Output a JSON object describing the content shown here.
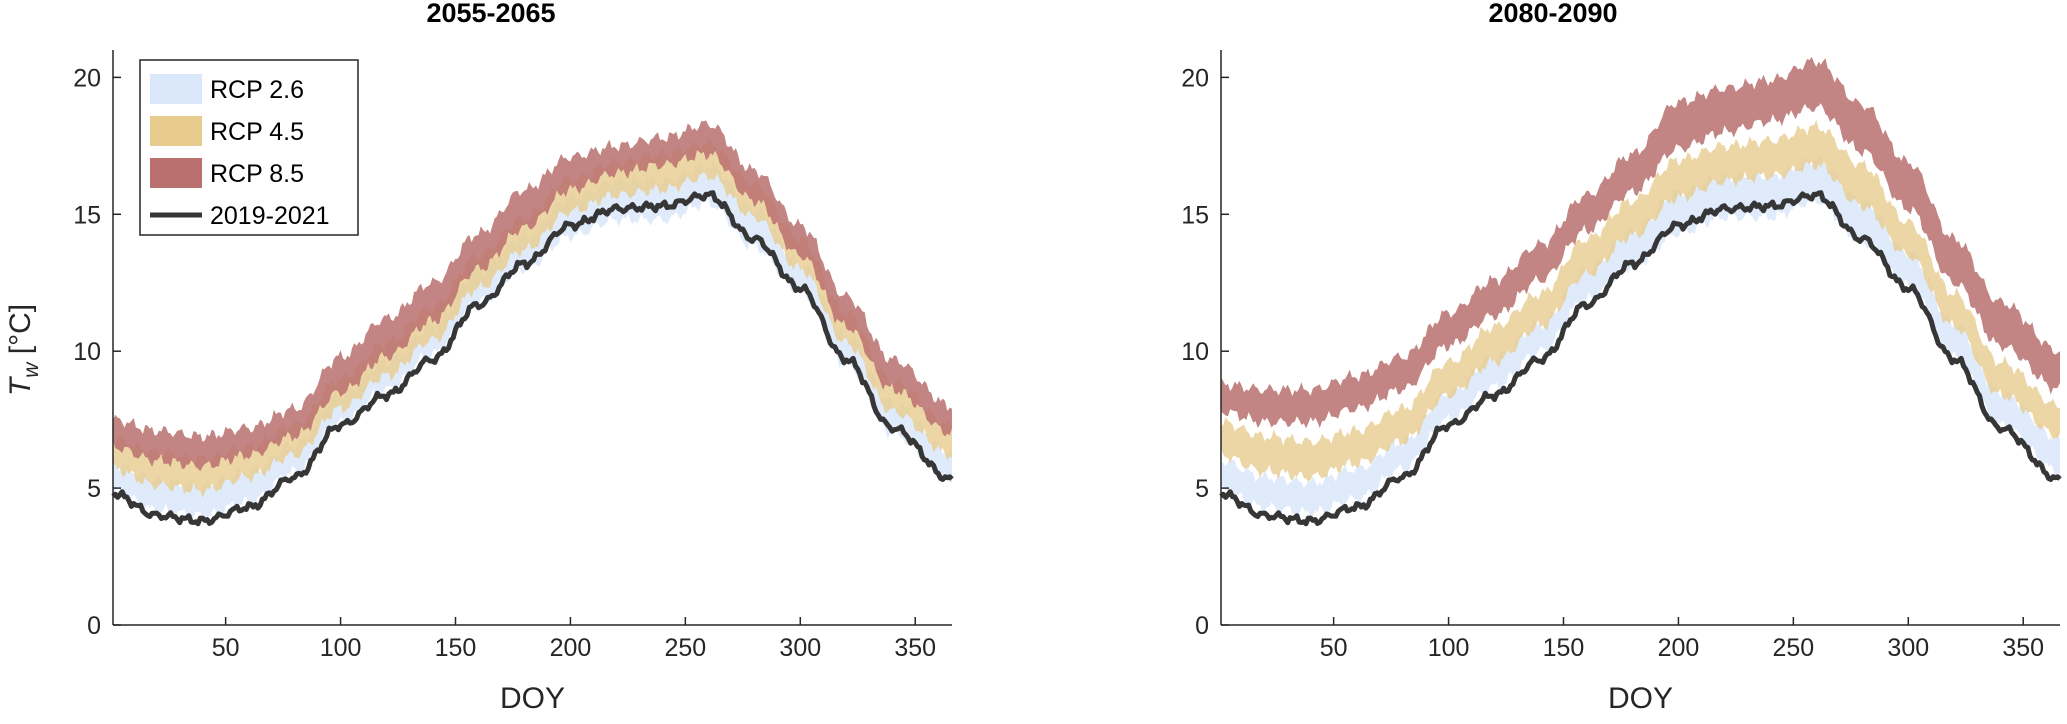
{
  "legend": {
    "items": [
      {
        "label": "RCP 2.6",
        "color": "#dbe8fb",
        "kind": "band"
      },
      {
        "label": "RCP 4.5",
        "color": "#e8cc8e",
        "kind": "band"
      },
      {
        "label": "RCP 8.5",
        "color": "#b9706f",
        "kind": "band"
      },
      {
        "label": "2019-2021",
        "color": "#363636",
        "kind": "line"
      }
    ]
  },
  "ylabel_symbol": "T",
  "ylabel_subscript": "w",
  "ylabel_unit": " [°C]",
  "chart_data": [
    {
      "type": "area",
      "title": "2055-2065",
      "xlabel": "DOY",
      "ylabel": "T_w [°C]",
      "xlim": [
        1,
        366
      ],
      "ylim": [
        0,
        21
      ],
      "xticks": [
        50,
        100,
        150,
        200,
        250,
        300,
        350
      ],
      "yticks": [
        0,
        5,
        10,
        15,
        20
      ],
      "grid": false,
      "legend_position": "top-left",
      "x": [
        1,
        20,
        40,
        60,
        80,
        100,
        120,
        140,
        160,
        180,
        200,
        220,
        240,
        260,
        280,
        300,
        320,
        340,
        366
      ],
      "observed": {
        "name": "2019-2021",
        "values": [
          4.8,
          4.0,
          3.8,
          4.3,
          5.4,
          7.3,
          8.4,
          9.7,
          11.7,
          13.2,
          14.6,
          15.2,
          15.3,
          15.7,
          14.1,
          12.3,
          9.7,
          7.2,
          5.3
        ]
      },
      "series": [
        {
          "name": "RCP 2.6",
          "lower": [
            4.9,
            4.2,
            4.0,
            4.5,
            5.6,
            7.4,
            8.6,
            9.9,
            11.8,
            13.0,
            14.2,
            14.8,
            14.8,
            15.4,
            13.8,
            12.2,
            9.5,
            7.0,
            5.3
          ],
          "upper": [
            5.9,
            5.3,
            5.1,
            5.6,
            6.6,
            8.4,
            9.6,
            10.9,
            12.9,
            14.2,
            15.6,
            16.2,
            16.2,
            16.8,
            15.2,
            13.2,
            10.6,
            8.1,
            6.3
          ]
        },
        {
          "name": "RCP 4.5",
          "lower": [
            5.7,
            5.1,
            4.9,
            5.4,
            6.2,
            7.9,
            9.1,
            10.4,
            12.3,
            13.7,
            15.1,
            15.7,
            15.9,
            16.4,
            14.9,
            13.0,
            10.3,
            7.8,
            6.2
          ],
          "upper": [
            6.8,
            6.3,
            6.1,
            6.5,
            7.3,
            9.0,
            10.3,
            11.6,
            13.5,
            14.9,
            16.3,
            16.9,
            17.2,
            17.6,
            16.1,
            14.1,
            11.4,
            8.9,
            7.3
          ]
        },
        {
          "name": "RCP 8.5",
          "lower": [
            6.5,
            6.0,
            5.8,
            6.2,
            6.9,
            8.5,
            9.8,
            11.1,
            13.0,
            14.5,
            15.9,
            16.5,
            16.8,
            17.2,
            15.5,
            13.5,
            10.9,
            8.6,
            7.0
          ],
          "upper": [
            7.5,
            7.1,
            6.9,
            7.2,
            7.9,
            9.8,
            11.2,
            12.5,
            14.3,
            15.9,
            17.1,
            17.5,
            17.8,
            18.3,
            16.6,
            14.6,
            12.0,
            9.7,
            8.0
          ]
        }
      ]
    },
    {
      "type": "area",
      "title": "2080-2090",
      "xlabel": "DOY",
      "ylabel": "",
      "xlim": [
        1,
        366
      ],
      "ylim": [
        0,
        21
      ],
      "xticks": [
        50,
        100,
        150,
        200,
        250,
        300,
        350
      ],
      "yticks": [
        0,
        5,
        10,
        15,
        20
      ],
      "grid": false,
      "x": [
        1,
        20,
        40,
        60,
        80,
        100,
        120,
        140,
        160,
        180,
        200,
        220,
        240,
        260,
        280,
        300,
        320,
        340,
        366
      ],
      "observed": {
        "name": "2019-2021",
        "values": [
          4.8,
          4.0,
          3.8,
          4.3,
          5.4,
          7.3,
          8.4,
          9.7,
          11.7,
          13.2,
          14.6,
          15.2,
          15.3,
          15.7,
          14.1,
          12.3,
          9.7,
          7.2,
          5.3
        ]
      },
      "series": [
        {
          "name": "RCP 2.6",
          "lower": [
            4.9,
            4.3,
            4.1,
            4.6,
            5.7,
            7.5,
            8.7,
            10.0,
            11.9,
            13.1,
            14.3,
            14.9,
            14.9,
            15.5,
            14.0,
            12.4,
            9.8,
            7.3,
            5.6
          ],
          "upper": [
            6.0,
            5.4,
            5.2,
            5.7,
            6.7,
            8.5,
            9.8,
            11.0,
            13.0,
            14.4,
            15.8,
            16.4,
            16.4,
            17.0,
            15.5,
            13.6,
            11.0,
            8.5,
            6.8
          ]
        },
        {
          "name": "RCP 4.5",
          "lower": [
            6.2,
            5.6,
            5.4,
            5.9,
            6.7,
            8.4,
            9.6,
            10.9,
            12.8,
            14.2,
            15.6,
            16.2,
            16.4,
            16.8,
            15.3,
            13.5,
            10.9,
            8.4,
            6.9
          ],
          "upper": [
            7.4,
            6.9,
            6.7,
            7.1,
            7.9,
            9.6,
            10.9,
            12.1,
            14.1,
            15.5,
            17.0,
            17.5,
            17.7,
            18.2,
            16.8,
            14.7,
            12.1,
            9.6,
            8.0
          ]
        },
        {
          "name": "RCP 8.5",
          "lower": [
            7.8,
            7.4,
            7.4,
            7.9,
            8.6,
            10.2,
            11.3,
            12.6,
            14.4,
            15.8,
            17.4,
            18.0,
            18.4,
            18.9,
            17.3,
            15.2,
            12.5,
            10.2,
            8.6
          ],
          "upper": [
            8.8,
            8.6,
            8.6,
            9.1,
            9.8,
            11.4,
            12.6,
            13.9,
            15.7,
            17.2,
            19.1,
            19.6,
            19.9,
            20.6,
            19.0,
            16.9,
            14.1,
            11.8,
            10.0
          ]
        }
      ]
    }
  ]
}
